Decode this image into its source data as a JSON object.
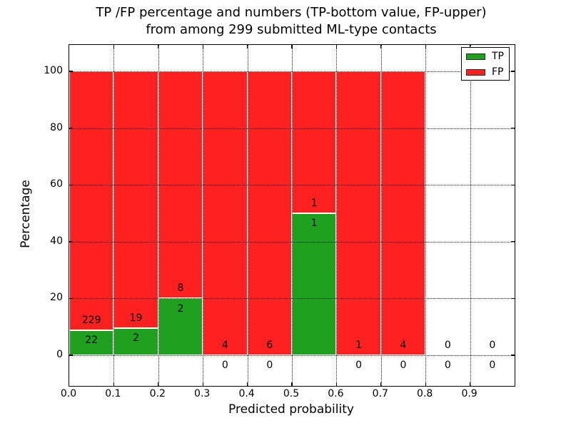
{
  "chart_data": {
    "type": "bar",
    "variant": "stacked-percentage-histogram",
    "title_line1": "TP /FP percentage and numbers (TP-bottom value, FP-upper)",
    "title_line2": "from among 299 submitted ML-type contacts",
    "xlabel": "Predicted probability",
    "ylabel": "Percentage",
    "total_contacts": 299,
    "bins": [
      {
        "x0": 0.0,
        "x1": 0.1,
        "tp": 22,
        "fp": 229
      },
      {
        "x0": 0.1,
        "x1": 0.2,
        "tp": 2,
        "fp": 19
      },
      {
        "x0": 0.2,
        "x1": 0.3,
        "tp": 2,
        "fp": 8
      },
      {
        "x0": 0.3,
        "x1": 0.4,
        "tp": 0,
        "fp": 4
      },
      {
        "x0": 0.4,
        "x1": 0.5,
        "tp": 0,
        "fp": 6
      },
      {
        "x0": 0.5,
        "x1": 0.6,
        "tp": 1,
        "fp": 1
      },
      {
        "x0": 0.6,
        "x1": 0.7,
        "tp": 0,
        "fp": 1
      },
      {
        "x0": 0.7,
        "x1": 0.8,
        "tp": 0,
        "fp": 4
      },
      {
        "x0": 0.8,
        "x1": 0.9,
        "tp": 0,
        "fp": 0
      },
      {
        "x0": 0.9,
        "x1": 1.0,
        "tp": 0,
        "fp": 0
      }
    ],
    "xticks": [
      "0.0",
      "0.1",
      "0.2",
      "0.3",
      "0.4",
      "0.5",
      "0.6",
      "0.7",
      "0.8",
      "0.9"
    ],
    "xtick_values": [
      0.0,
      0.1,
      0.2,
      0.3,
      0.4,
      0.5,
      0.6,
      0.7,
      0.8,
      0.9
    ],
    "yticks": [
      "0",
      "20",
      "40",
      "60",
      "80",
      "100"
    ],
    "ytick_values": [
      0,
      20,
      40,
      60,
      80,
      100
    ],
    "xlim": [
      0.0,
      1.0
    ],
    "ylim": [
      -10.8,
      109.3
    ],
    "grid": "dotted",
    "legend": {
      "position": "upper right",
      "entries": [
        {
          "label": "TP",
          "color": "#1fa01f"
        },
        {
          "label": "FP",
          "color": "#ff2020"
        }
      ]
    },
    "colors": {
      "tp": "#1fa01f",
      "fp": "#ff2020",
      "bar_edge": "#ffffff",
      "grid": "#000000",
      "background": "#ffffff"
    }
  }
}
